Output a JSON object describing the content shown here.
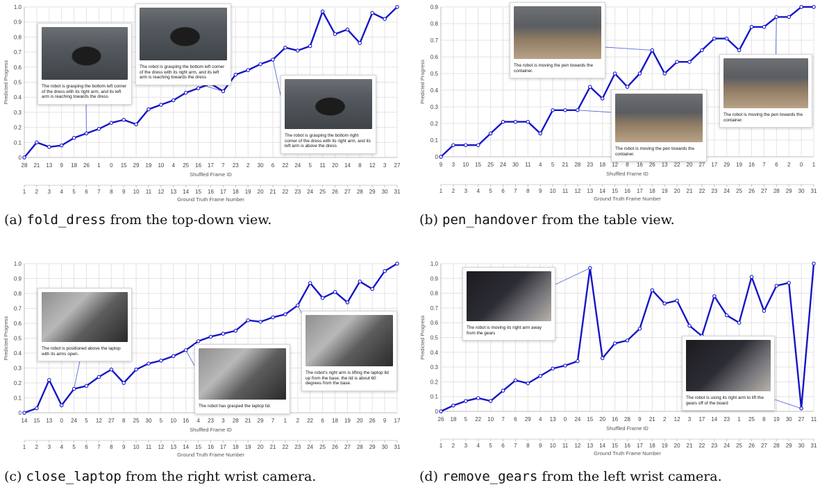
{
  "chart_data": [
    {
      "type": "line",
      "caption_prefix": "(a) ",
      "caption_code": "fold_dress",
      "caption_suffix": " from the top-down view.",
      "ylabel": "Predicted Progress",
      "xlabel": "Shuffled Frame ID",
      "xlabel2": "Ground Truth Frame Number",
      "ylim": [
        0,
        1
      ],
      "ytick_labels": [
        "0",
        "0.1",
        "0.2",
        "0.3",
        "0.4",
        "0.5",
        "0.6",
        "0.7",
        "0.8",
        "0.9",
        "1.0"
      ],
      "shuffled_ids": [
        "28",
        "21",
        "13",
        "9",
        "18",
        "26",
        "1",
        "0",
        "15",
        "29",
        "19",
        "10",
        "4",
        "25",
        "16",
        "17",
        "7",
        "23",
        "2",
        "30",
        "6",
        "22",
        "24",
        "5",
        "11",
        "20",
        "14",
        "8",
        "12",
        "3",
        "27"
      ],
      "gt_frames": [
        "1",
        "2",
        "3",
        "4",
        "5",
        "6",
        "7",
        "8",
        "9",
        "10",
        "11",
        "12",
        "13",
        "14",
        "15",
        "16",
        "17",
        "18",
        "19",
        "20",
        "21",
        "22",
        "23",
        "24",
        "25",
        "26",
        "27",
        "28",
        "29",
        "30",
        "31"
      ],
      "values": [
        0.0,
        0.1,
        0.07,
        0.08,
        0.13,
        0.16,
        0.19,
        0.23,
        0.25,
        0.22,
        0.32,
        0.35,
        0.38,
        0.43,
        0.46,
        0.49,
        0.44,
        0.55,
        0.58,
        0.62,
        0.65,
        0.73,
        0.71,
        0.74,
        0.97,
        0.82,
        0.85,
        0.76,
        0.96,
        0.92,
        1.0
      ],
      "grid": true,
      "line_color": "#1515c8",
      "callouts": [
        {
          "text": "The robot is grasping the bottom left corner of the dress with its right arm, and its left arm is reaching towards the dress",
          "scene": "dress",
          "point_index": 5
        },
        {
          "text": "The robot is grasping the bottom left corner of the dress with its right arm, and its left arm is reaching towards the dress",
          "scene": "dress",
          "point_index": 16
        },
        {
          "text": "The robot is grasping the bottom right corner of the dress with its right arm, and its left arm is above the dress",
          "scene": "dress",
          "point_index": 20
        }
      ]
    },
    {
      "type": "line",
      "caption_prefix": "(b) ",
      "caption_code": "pen_handover",
      "caption_suffix": " from the table view.",
      "ylabel": "Predicted Progress",
      "xlabel": "Shuffled Frame ID",
      "xlabel2": "Ground Truth Frame Number",
      "ylim": [
        0,
        0.9
      ],
      "ytick_labels": [
        "0",
        "0.1",
        "0.2",
        "0.3",
        "0.4",
        "0.5",
        "0.6",
        "0.7",
        "0.8",
        "0.9"
      ],
      "shuffled_ids": [
        "9",
        "3",
        "10",
        "15",
        "25",
        "24",
        "30",
        "11",
        "4",
        "5",
        "21",
        "28",
        "23",
        "18",
        "12",
        "8",
        "16",
        "26",
        "13",
        "22",
        "20",
        "27",
        "17",
        "29",
        "19",
        "16",
        "7",
        "6",
        "2",
        "0",
        "1"
      ],
      "gt_frames": [
        "1",
        "2",
        "3",
        "4",
        "5",
        "6",
        "7",
        "8",
        "9",
        "10",
        "11",
        "12",
        "13",
        "14",
        "15",
        "16",
        "17",
        "18",
        "19",
        "20",
        "21",
        "22",
        "23",
        "24",
        "25",
        "26",
        "27",
        "28",
        "29",
        "30",
        "31"
      ],
      "values": [
        0.0,
        0.07,
        0.07,
        0.07,
        0.14,
        0.21,
        0.21,
        0.21,
        0.14,
        0.28,
        0.28,
        0.28,
        0.42,
        0.35,
        0.5,
        0.42,
        0.5,
        0.64,
        0.5,
        0.57,
        0.57,
        0.64,
        0.71,
        0.71,
        0.64,
        0.78,
        0.78,
        0.84,
        0.84,
        0.9,
        0.9
      ],
      "grid": true,
      "line_color": "#1515c8",
      "callouts": [
        {
          "text": "The robot is moving the pen towards the container.",
          "scene": "lab",
          "point_index": 17
        },
        {
          "text": "The robot is moving the pen towards the container.",
          "scene": "lab",
          "point_index": 11
        },
        {
          "text": "The robot is moving the pen towards the container.",
          "scene": "lab",
          "point_index": 27
        }
      ]
    },
    {
      "type": "line",
      "caption_prefix": "(c) ",
      "caption_code": "close_laptop",
      "caption_suffix": " from the right wrist camera.",
      "ylabel": "Predicted Progress",
      "xlabel": "Shuffled Frame ID",
      "xlabel2": "Ground Truth Frame Number",
      "ylim": [
        0,
        1
      ],
      "ytick_labels": [
        "0",
        "0.1",
        "0.2",
        "0.3",
        "0.4",
        "0.5",
        "0.6",
        "0.7",
        "0.8",
        "0.9",
        "1.0"
      ],
      "shuffled_ids": [
        "14",
        "15",
        "13",
        "0",
        "24",
        "5",
        "12",
        "27",
        "8",
        "25",
        "30",
        "5",
        "10",
        "16",
        "4",
        "23",
        "3",
        "28",
        "21",
        "29",
        "7",
        "1",
        "2",
        "22",
        "6",
        "18",
        "19",
        "20",
        "26",
        "9",
        "17"
      ],
      "gt_frames": [
        "1",
        "2",
        "3",
        "4",
        "5",
        "6",
        "7",
        "8",
        "9",
        "10",
        "11",
        "12",
        "13",
        "14",
        "15",
        "16",
        "17",
        "18",
        "19",
        "20",
        "21",
        "22",
        "23",
        "24",
        "25",
        "26",
        "27",
        "28",
        "29",
        "30",
        "31"
      ],
      "values": [
        0.0,
        0.03,
        0.22,
        0.05,
        0.16,
        0.18,
        0.24,
        0.29,
        0.2,
        0.29,
        0.33,
        0.35,
        0.38,
        0.42,
        0.48,
        0.51,
        0.53,
        0.55,
        0.62,
        0.61,
        0.64,
        0.66,
        0.72,
        0.87,
        0.77,
        0.81,
        0.74,
        0.88,
        0.83,
        0.95,
        1.0
      ],
      "grid": true,
      "line_color": "#1515c8",
      "callouts": [
        {
          "text": "The robot is positioned above the laptop with its arms open.",
          "scene": "laptop",
          "point_index": 4
        },
        {
          "text": "The robot has grasped the laptop lid.",
          "scene": "laptop",
          "point_index": 13
        },
        {
          "text": "The robot's right arm is lifting the laptop lid up from the base, the lid is about 60 degrees from the base.",
          "scene": "laptop",
          "point_index": 22
        }
      ]
    },
    {
      "type": "line",
      "caption_prefix": "(d) ",
      "caption_code": "remove_gears",
      "caption_suffix": " from the left wrist camera.",
      "ylabel": "Predicted Progress",
      "xlabel": "Shuffled Frame ID",
      "xlabel2": "Ground Truth Frame Number",
      "ylim": [
        0,
        1
      ],
      "ytick_labels": [
        "0",
        "0.1",
        "0.2",
        "0.3",
        "0.4",
        "0.5",
        "0.6",
        "0.7",
        "0.8",
        "0.9",
        "1.0"
      ],
      "shuffled_ids": [
        "26",
        "18",
        "5",
        "22",
        "10",
        "7",
        "6",
        "29",
        "4",
        "13",
        "0",
        "24",
        "15",
        "20",
        "16",
        "28",
        "9",
        "21",
        "2",
        "12",
        "3",
        "17",
        "14",
        "23",
        "1",
        "25",
        "8",
        "19",
        "30",
        "27",
        "11"
      ],
      "gt_frames": [
        "1",
        "2",
        "3",
        "4",
        "5",
        "6",
        "7",
        "8",
        "9",
        "10",
        "11",
        "12",
        "13",
        "14",
        "15",
        "16",
        "17",
        "18",
        "19",
        "20",
        "21",
        "22",
        "23",
        "24",
        "25",
        "26",
        "27",
        "28",
        "29",
        "30",
        "31"
      ],
      "values": [
        0.0,
        0.04,
        0.07,
        0.09,
        0.07,
        0.14,
        0.21,
        0.19,
        0.24,
        0.29,
        0.31,
        0.34,
        0.97,
        0.36,
        0.46,
        0.48,
        0.56,
        0.82,
        0.73,
        0.75,
        0.58,
        0.51,
        0.78,
        0.65,
        0.6,
        0.91,
        0.68,
        0.85,
        0.87,
        0.02,
        1.0
      ],
      "grid": true,
      "line_color": "#1515c8",
      "callouts": [
        {
          "text": "The robot is moving its right arm away from the gears",
          "scene": "gears",
          "point_index": 12
        },
        {
          "text": "The robot is using its right arm to lift the gears off of the board",
          "scene": "gears",
          "point_index": 29
        }
      ]
    }
  ]
}
